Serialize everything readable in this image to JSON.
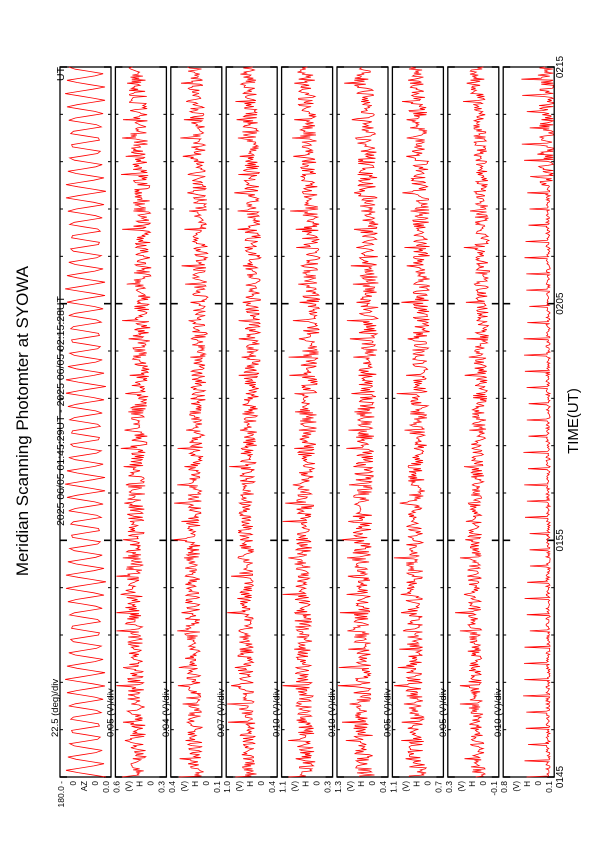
{
  "title": "Meridian Scanning Photomter at SYOWA",
  "time_range": "2025 06/05 01:45:29UT - 2025 06/05 02:15:28UT",
  "ut_suffix": "UT",
  "xlabel": "TIME(UT)",
  "colors": {
    "trace": "#ff0000",
    "axes": "#000000",
    "background": "#ffffff"
  },
  "chart_data": {
    "type": "line",
    "orientation": "rotated 90 degrees counter-clockwise (time increases upward on page)",
    "x": {
      "ticks": [
        "0145",
        "0155",
        "0205",
        "0215"
      ],
      "range_minutes": [
        0,
        30
      ],
      "major_tick_every_min": 10,
      "minor_tick_every_min": 2
    },
    "series": [
      {
        "label": "180.0 -",
        "top": "180.0",
        "bottom": "0.0",
        "scale": "22.5 (deg)/div",
        "sublabels": [
          "0",
          "AZ",
          "0"
        ],
        "style": "triangle"
      },
      {
        "label": "",
        "top": "0.6",
        "bottom": "0.3",
        "scale": "0.05 (V)/div",
        "sublabels": [
          "(V)",
          "H",
          "0"
        ],
        "style": "noise",
        "baseline": 0.55,
        "amp": 0.35
      },
      {
        "label": "",
        "top": "0.4",
        "bottom": "0.1",
        "scale": "0.04 (V)/div",
        "sublabels": [
          "(V)",
          "H",
          "0"
        ],
        "style": "noise",
        "baseline": 0.5,
        "amp": 0.3
      },
      {
        "label": "",
        "top": "1.0",
        "bottom": "0.4",
        "scale": "0.07 (V)/div",
        "sublabels": [
          "(V)",
          "H",
          "0"
        ],
        "style": "noise",
        "baseline": 0.55,
        "amp": 0.32
      },
      {
        "label": "",
        "top": "1.1",
        "bottom": "0.3",
        "scale": "0.10 (V)/div",
        "sublabels": [
          "(V)",
          "H",
          "0"
        ],
        "style": "noise",
        "baseline": 0.5,
        "amp": 0.35
      },
      {
        "label": "",
        "top": "1.3",
        "bottom": "0.4",
        "scale": "0.10 (V)/div",
        "sublabels": [
          "(V)",
          "H",
          "0"
        ],
        "style": "noise",
        "baseline": 0.45,
        "amp": 0.38
      },
      {
        "label": "",
        "top": "1.1",
        "bottom": "0.7",
        "scale": "0.05 (V)/div",
        "sublabels": [
          "(V)",
          "H",
          "0"
        ],
        "style": "noise",
        "baseline": 0.5,
        "amp": 0.35
      },
      {
        "label": "",
        "top": "0.3",
        "bottom": "-0.1",
        "scale": "0.05 (V)/div",
        "sublabels": [
          "(V)",
          "H",
          "0"
        ],
        "style": "noise",
        "baseline": 0.4,
        "amp": 0.28
      },
      {
        "label": "",
        "top": "0.8",
        "bottom": "0.1",
        "scale": "0.10 (V)/div",
        "sublabels": [
          "(V)",
          "H",
          "0"
        ],
        "style": "spikes",
        "baseline": 0.12,
        "amp": 0.5
      }
    ]
  }
}
